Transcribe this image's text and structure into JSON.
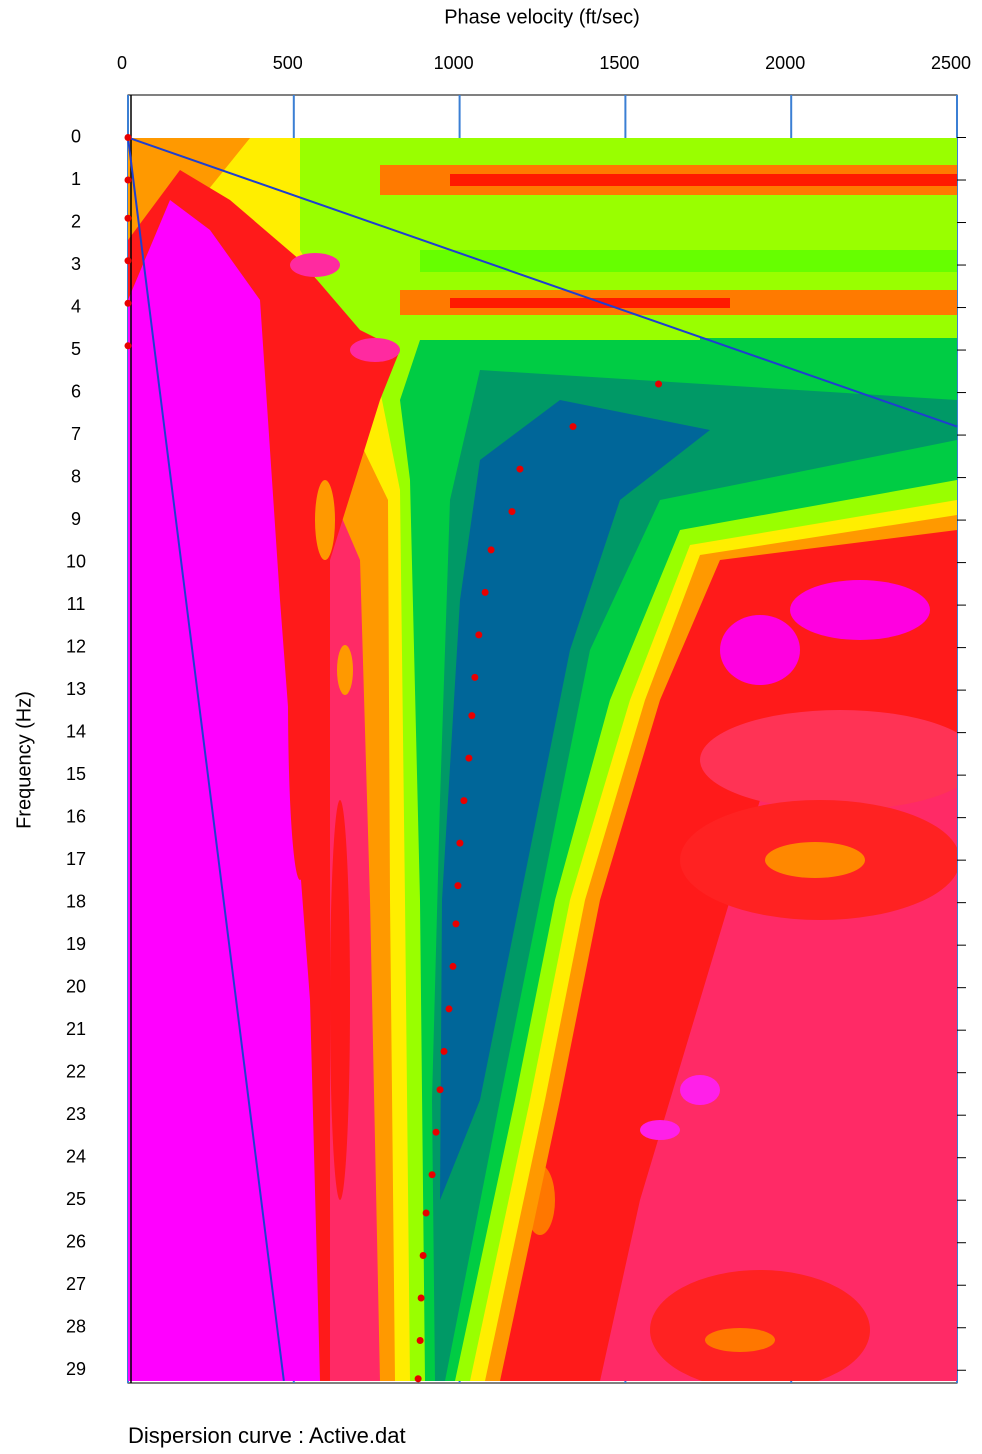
{
  "chart_data": {
    "type": "scatter",
    "x_label": "Phase velocity (ft/sec)",
    "y_label": "Frequency (Hz)",
    "footer": "Dispersion curve : Active.dat",
    "xlim": [
      0,
      2500
    ],
    "xticks": [
      0,
      500,
      1000,
      1500,
      2000,
      2500
    ],
    "ylim": [
      -1,
      29.3
    ],
    "y_inverted": true,
    "yticks": [
      0,
      1,
      2,
      3,
      4,
      5,
      6,
      7,
      8,
      9,
      10,
      11,
      12,
      13,
      14,
      15,
      16,
      17,
      18,
      19,
      20,
      21,
      22,
      23,
      24,
      25,
      26,
      27,
      28,
      29
    ],
    "grid": true,
    "grid_color": "#3b7fd4",
    "series": [
      {
        "color": "#e80000",
        "x": [
          0,
          0,
          0,
          0,
          0,
          0,
          1600,
          1342,
          1182,
          1158,
          1095,
          1077,
          1058,
          1046,
          1037,
          1028,
          1013,
          1001,
          995,
          989,
          980,
          968,
          953,
          941,
          929,
          917,
          899,
          890,
          884,
          881,
          875
        ],
        "y": [
          0,
          1,
          1.9,
          2.9,
          3.9,
          4.9,
          5.8,
          6.8,
          7.8,
          8.8,
          9.7,
          10.7,
          11.7,
          12.7,
          13.6,
          14.6,
          15.6,
          16.6,
          17.6,
          18.5,
          19.5,
          20.5,
          21.5,
          22.4,
          23.4,
          24.4,
          25.3,
          26.3,
          27.3,
          28.3,
          29.2
        ]
      }
    ],
    "reference_lines": [
      {
        "color": "#1f3fd0",
        "x": [
          0,
          2500
        ],
        "y": [
          0,
          6.8
        ]
      },
      {
        "color": "#1f3fd0",
        "x": [
          0,
          470
        ],
        "y": [
          0,
          29.25
        ]
      }
    ]
  }
}
